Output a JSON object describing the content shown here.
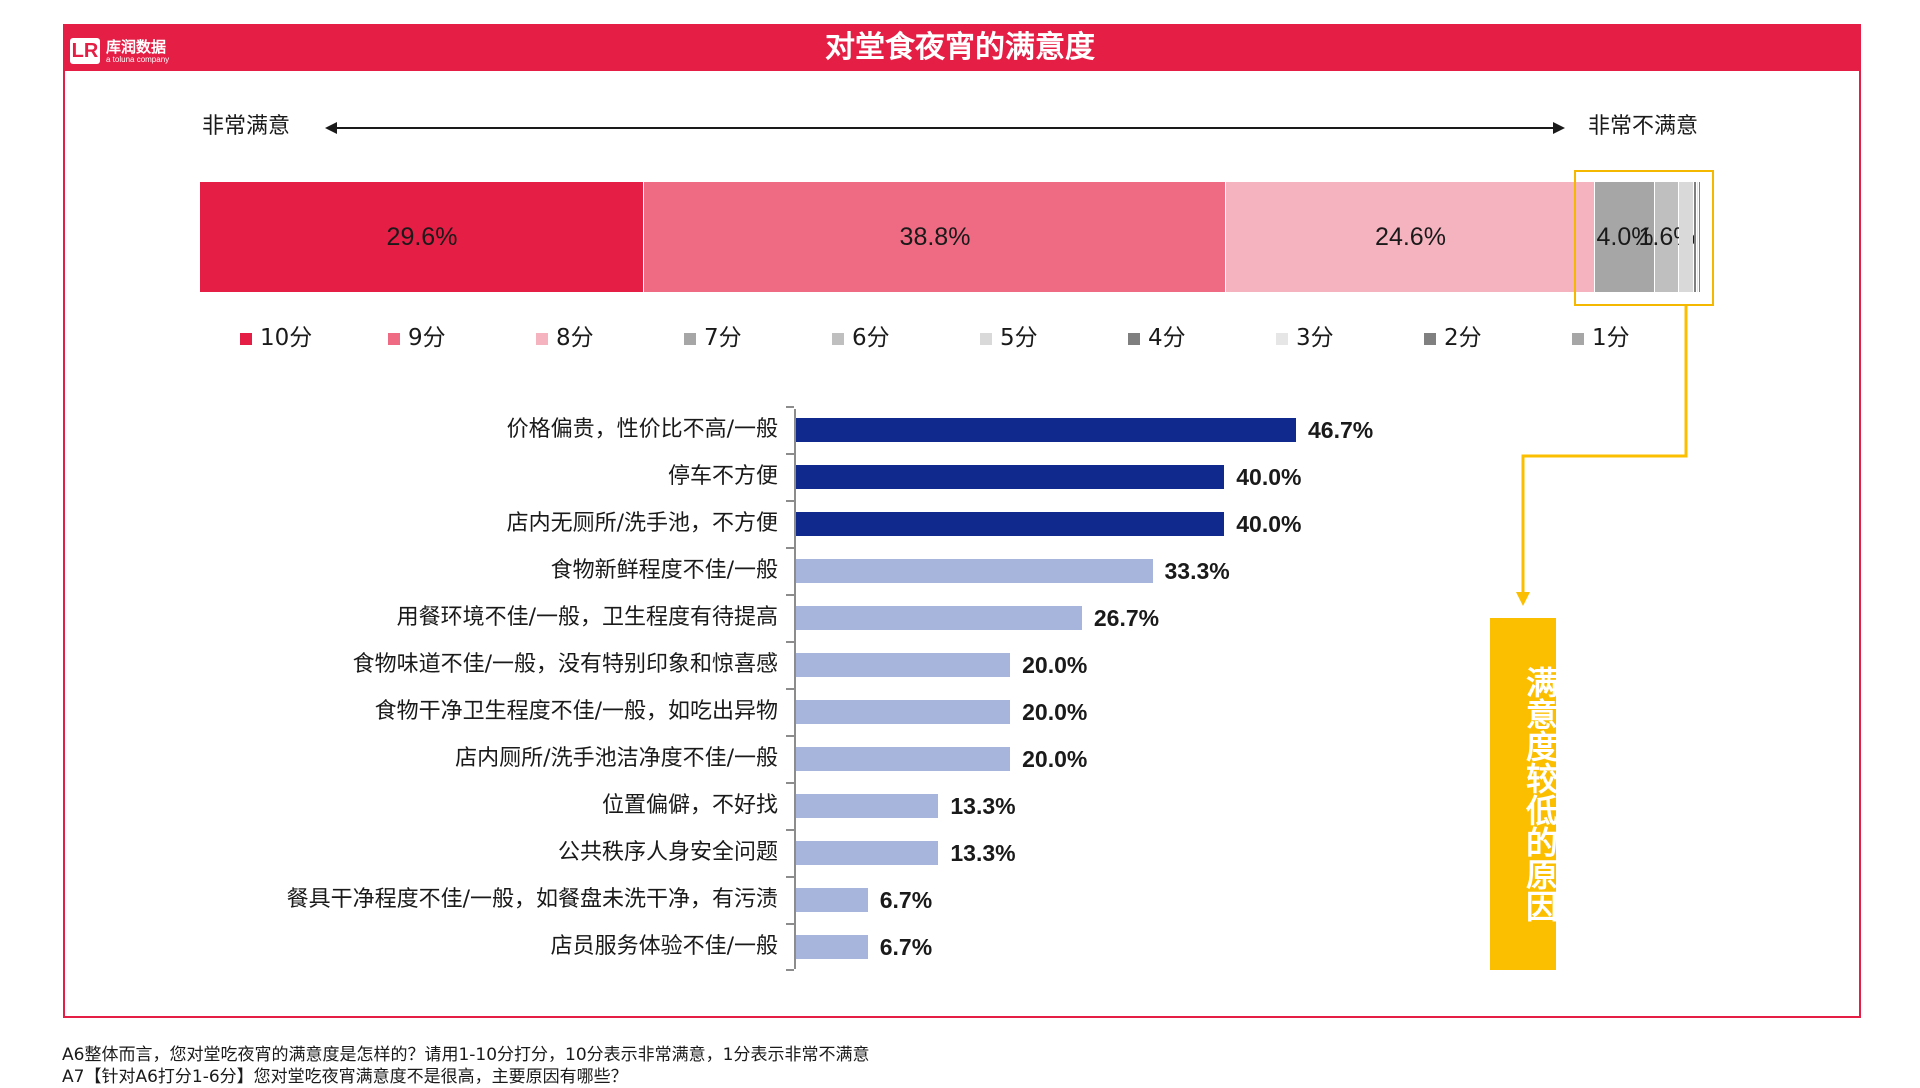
{
  "header": {
    "title": "对堂食夜宵的满意度",
    "logo_text": "库润数据",
    "logo_sub": "a toluna company",
    "logo_mark": "LR",
    "color": "#e41e45"
  },
  "scale": {
    "left_label": "非常满意",
    "right_label": "非常不满意"
  },
  "chart_data": [
    {
      "type": "bar",
      "orientation": "horizontal-stacked",
      "categories": [
        "10分",
        "9分",
        "8分",
        "7分",
        "6分",
        "5分",
        "4分",
        "3分",
        "2分",
        "1分"
      ],
      "values": [
        29.6,
        38.8,
        24.6,
        4.0,
        1.6,
        1.0,
        0.2,
        0.1,
        0.1,
        0.0
      ],
      "value_labels": [
        "29.6%",
        "38.8%",
        "24.6%",
        "4.0%",
        "1.6%",
        "",
        "",
        "",
        "",
        ""
      ],
      "colors": [
        "#e41e45",
        "#ef6b83",
        "#f5b3c0",
        "#a6a6a6",
        "#bfbfbf",
        "#d9d9d9",
        "#7f7f7f",
        "#e6e6e6",
        "#808080",
        "#a6a6a6"
      ],
      "legend_position": "bottom"
    },
    {
      "type": "bar",
      "orientation": "horizontal",
      "categories": [
        "价格偏贵，性价比不高/一般",
        "停车不方便",
        "店内无厕所/洗手池，不方便",
        "食物新鲜程度不佳/一般",
        "用餐环境不佳/一般，卫生程度有待提高",
        "食物味道不佳/一般，没有特别印象和惊喜感",
        "食物干净卫生程度不佳/一般，如吃出异物",
        "店内厕所/洗手池洁净度不佳/一般",
        "位置偏僻，不好找",
        "公共秩序人身安全问题",
        "餐具干净程度不佳/一般，如餐盘未洗干净，有污渍",
        "店员服务体验不佳/一般"
      ],
      "values": [
        46.7,
        40.0,
        40.0,
        33.3,
        26.7,
        20.0,
        20.0,
        20.0,
        13.3,
        13.3,
        6.7,
        6.7
      ],
      "value_labels": [
        "46.7%",
        "40.0%",
        "40.0%",
        "33.3%",
        "26.7%",
        "20.0%",
        "20.0%",
        "20.0%",
        "13.3%",
        "13.3%",
        "6.7%",
        "6.7%"
      ],
      "highlight_count": 3,
      "highlight_color": "#0f2a8c",
      "base_color": "#a7b4db"
    }
  ],
  "callout": {
    "text": "满意度较低的原因",
    "color": "#fbbf00"
  },
  "footnotes": [
    "A6整体而言，您对堂吃夜宵的满意度是怎样的？请用1-10分打分，10分表示非常满意，1分表示非常不满意",
    "A7【针对A6打分1-6分】您对堂吃夜宵满意度不是很高，主要原因有哪些？"
  ]
}
